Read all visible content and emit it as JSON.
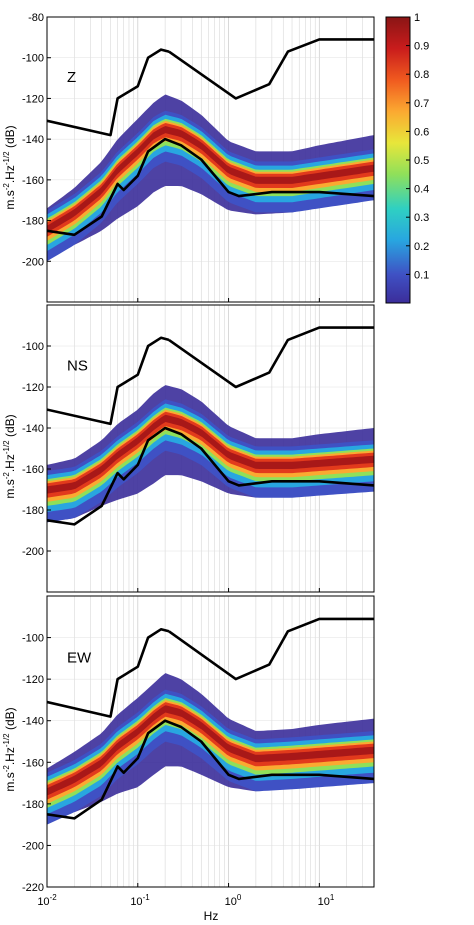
{
  "chart_data": {
    "type": "heatmap",
    "x_axis": {
      "label": "Hz",
      "scale": "log",
      "range": [
        0.01,
        40
      ],
      "ticks": [
        0.01,
        0.1,
        1,
        10
      ],
      "tick_labels": [
        "10",
        "10",
        "10",
        "10"
      ],
      "tick_exponents": [
        "-2",
        "-1",
        "0",
        "1"
      ]
    },
    "colorbar": {
      "range": [
        0,
        1
      ],
      "ticks": [
        0.1,
        0.2,
        0.3,
        0.4,
        0.5,
        0.6,
        0.7,
        0.8,
        0.9,
        1
      ],
      "tick_labels": [
        "0.1",
        "0.2",
        "0.3",
        "0.4",
        "0.5",
        "0.6",
        "0.7",
        "0.8",
        "0.9",
        "1"
      ],
      "colormap": [
        "#3b2d9a",
        "#3f51c4",
        "#28a6e0",
        "#2fd0c2",
        "#8fe05a",
        "#e8e63a",
        "#fba931",
        "#f05a1f",
        "#c91c1c",
        "#8a1515"
      ]
    },
    "y_label": {
      "base": "m.s",
      "exp1": "-2",
      "mid": ".Hz",
      "exp2": "-1/2",
      "unit": " (dB)"
    },
    "panels": [
      {
        "name": "Z",
        "ylim": [
          -220,
          -80
        ],
        "yticks": [
          -200,
          -180,
          -160,
          -140,
          -120,
          -100,
          -80
        ],
        "ytick_labels": [
          "-200",
          "-180",
          "-160",
          "-140",
          "-120",
          "-100",
          "-80"
        ],
        "mode_curve": {
          "x": [
            0.01,
            0.02,
            0.04,
            0.06,
            0.1,
            0.15,
            0.2,
            0.3,
            0.5,
            1,
            2,
            5,
            10,
            40
          ],
          "y": [
            -184,
            -176,
            -165,
            -155,
            -146,
            -138,
            -135,
            -137,
            -143,
            -155,
            -160,
            -160,
            -158,
            -154
          ]
        },
        "band_upper_offset": [
          10,
          12,
          14,
          15,
          16,
          16,
          17,
          16,
          15,
          14,
          14,
          14,
          15,
          16
        ],
        "band_lower_offset": [
          14,
          16,
          20,
          24,
          27,
          28,
          28,
          26,
          24,
          20,
          17,
          16,
          15,
          14
        ]
      },
      {
        "name": "NS",
        "ylim": [
          -220,
          -80
        ],
        "yticks": [
          -200,
          -180,
          -160,
          -140,
          -120,
          -100
        ],
        "ytick_labels": [
          "-200",
          "-180",
          "-160",
          "-140",
          "-120",
          "-100"
        ],
        "mode_curve": {
          "x": [
            0.01,
            0.02,
            0.04,
            0.06,
            0.1,
            0.15,
            0.2,
            0.3,
            0.5,
            1,
            2,
            5,
            10,
            40
          ],
          "y": [
            -170,
            -168,
            -160,
            -153,
            -146,
            -139,
            -135,
            -137,
            -142,
            -153,
            -158,
            -158,
            -157,
            -155
          ]
        },
        "band_upper_offset": [
          12,
          13,
          14,
          15,
          15,
          16,
          16,
          16,
          15,
          14,
          13,
          13,
          14,
          15
        ],
        "band_lower_offset": [
          16,
          16,
          18,
          22,
          26,
          28,
          28,
          26,
          24,
          19,
          16,
          15,
          14,
          14
        ]
      },
      {
        "name": "EW",
        "ylim": [
          -220,
          -80
        ],
        "yticks": [
          -220,
          -200,
          -180,
          -160,
          -140,
          -120,
          -100
        ],
        "ytick_labels": [
          "-220",
          "-200",
          "-180",
          "-160",
          "-140",
          "-120",
          "-100"
        ],
        "mode_curve": {
          "x": [
            0.01,
            0.02,
            0.04,
            0.06,
            0.1,
            0.15,
            0.2,
            0.3,
            0.5,
            1,
            2,
            5,
            10,
            40
          ],
          "y": [
            -174,
            -168,
            -160,
            -152,
            -145,
            -138,
            -134,
            -136,
            -142,
            -153,
            -158,
            -157,
            -156,
            -154
          ]
        },
        "band_upper_offset": [
          11,
          13,
          14,
          15,
          16,
          16,
          17,
          16,
          15,
          14,
          13,
          13,
          14,
          15
        ],
        "band_lower_offset": [
          14,
          16,
          19,
          23,
          27,
          28,
          28,
          26,
          24,
          19,
          16,
          15,
          14,
          14
        ]
      }
    ],
    "nhnm": {
      "x": [
        0.01,
        0.02,
        0.04,
        0.06,
        0.07,
        0.1,
        0.13,
        0.2,
        0.3,
        0.5,
        1,
        1.3,
        3,
        10,
        40
      ],
      "y": [
        -185,
        -187,
        -178,
        -162,
        -165,
        -158,
        -146,
        -140,
        -143,
        -150,
        -166,
        -168,
        -166,
        -166,
        -168
      ]
    },
    "nlnm_segments": [
      {
        "x": [
          0.01,
          0.05,
          0.06,
          0.1,
          0.13,
          0.18,
          0.22
        ],
        "y": [
          -131,
          -138,
          -120,
          -114,
          -100,
          -96,
          -97
        ]
      },
      {
        "x": [
          0.22,
          1.2,
          2.8,
          4.5,
          10,
          40
        ],
        "y": [
          -97,
          -120,
          -113,
          -97,
          -91,
          -91
        ]
      }
    ]
  }
}
